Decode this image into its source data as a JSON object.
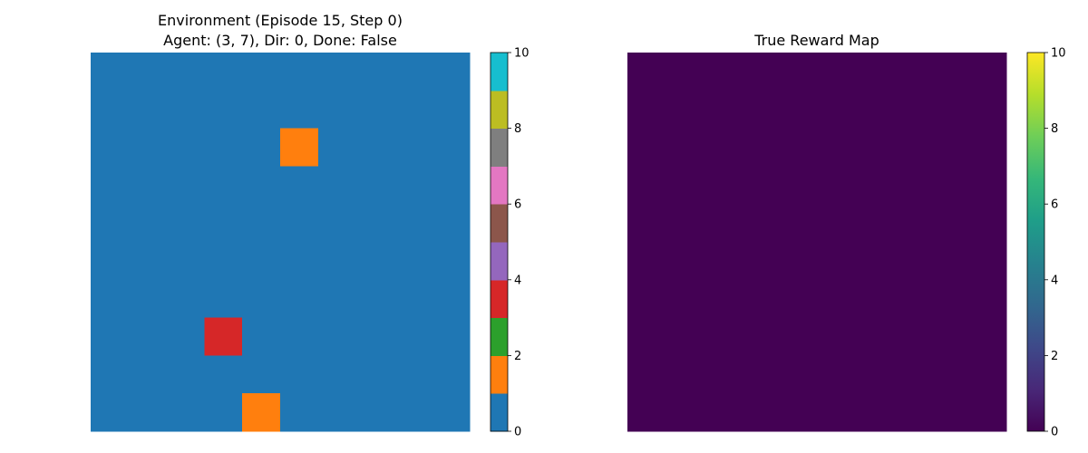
{
  "chart_data": [
    {
      "type": "heatmap",
      "title": "Environment (Episode 15, Step 0)",
      "subtitle": "Agent: (3, 7), Dir: 0, Done: False",
      "rows": 10,
      "cols": 10,
      "default_value": 0.5,
      "cells": [
        {
          "row": 2,
          "col": 5,
          "value": 1.5
        },
        {
          "row": 7,
          "col": 3,
          "value": 3.5
        },
        {
          "row": 9,
          "col": 4,
          "value": 1.5
        }
      ],
      "vmin": 0,
      "vmax": 10,
      "colormap": "tab10",
      "colormap_colors": [
        "#1f77b4",
        "#ff7f0e",
        "#2ca02c",
        "#d62728",
        "#9467bd",
        "#8c564b",
        "#e377c2",
        "#7f7f7f",
        "#bcbd22",
        "#17becf"
      ],
      "colorbar_ticks": [
        "0",
        "2",
        "4",
        "6",
        "8",
        "10"
      ],
      "axes_visible": false
    },
    {
      "type": "heatmap",
      "title": "True Reward Map",
      "rows": 10,
      "cols": 10,
      "default_value": 0,
      "cells": [],
      "vmin": 0,
      "vmax": 10,
      "colormap": "viridis",
      "colormap_colors": [
        "#440154",
        "#482878",
        "#3e4989",
        "#31688e",
        "#26828e",
        "#1f9e89",
        "#35b779",
        "#6ece58",
        "#b5de2b",
        "#fde725"
      ],
      "colorbar_ticks": [
        "0",
        "2",
        "4",
        "6",
        "8",
        "10"
      ],
      "axes_visible": false
    }
  ]
}
